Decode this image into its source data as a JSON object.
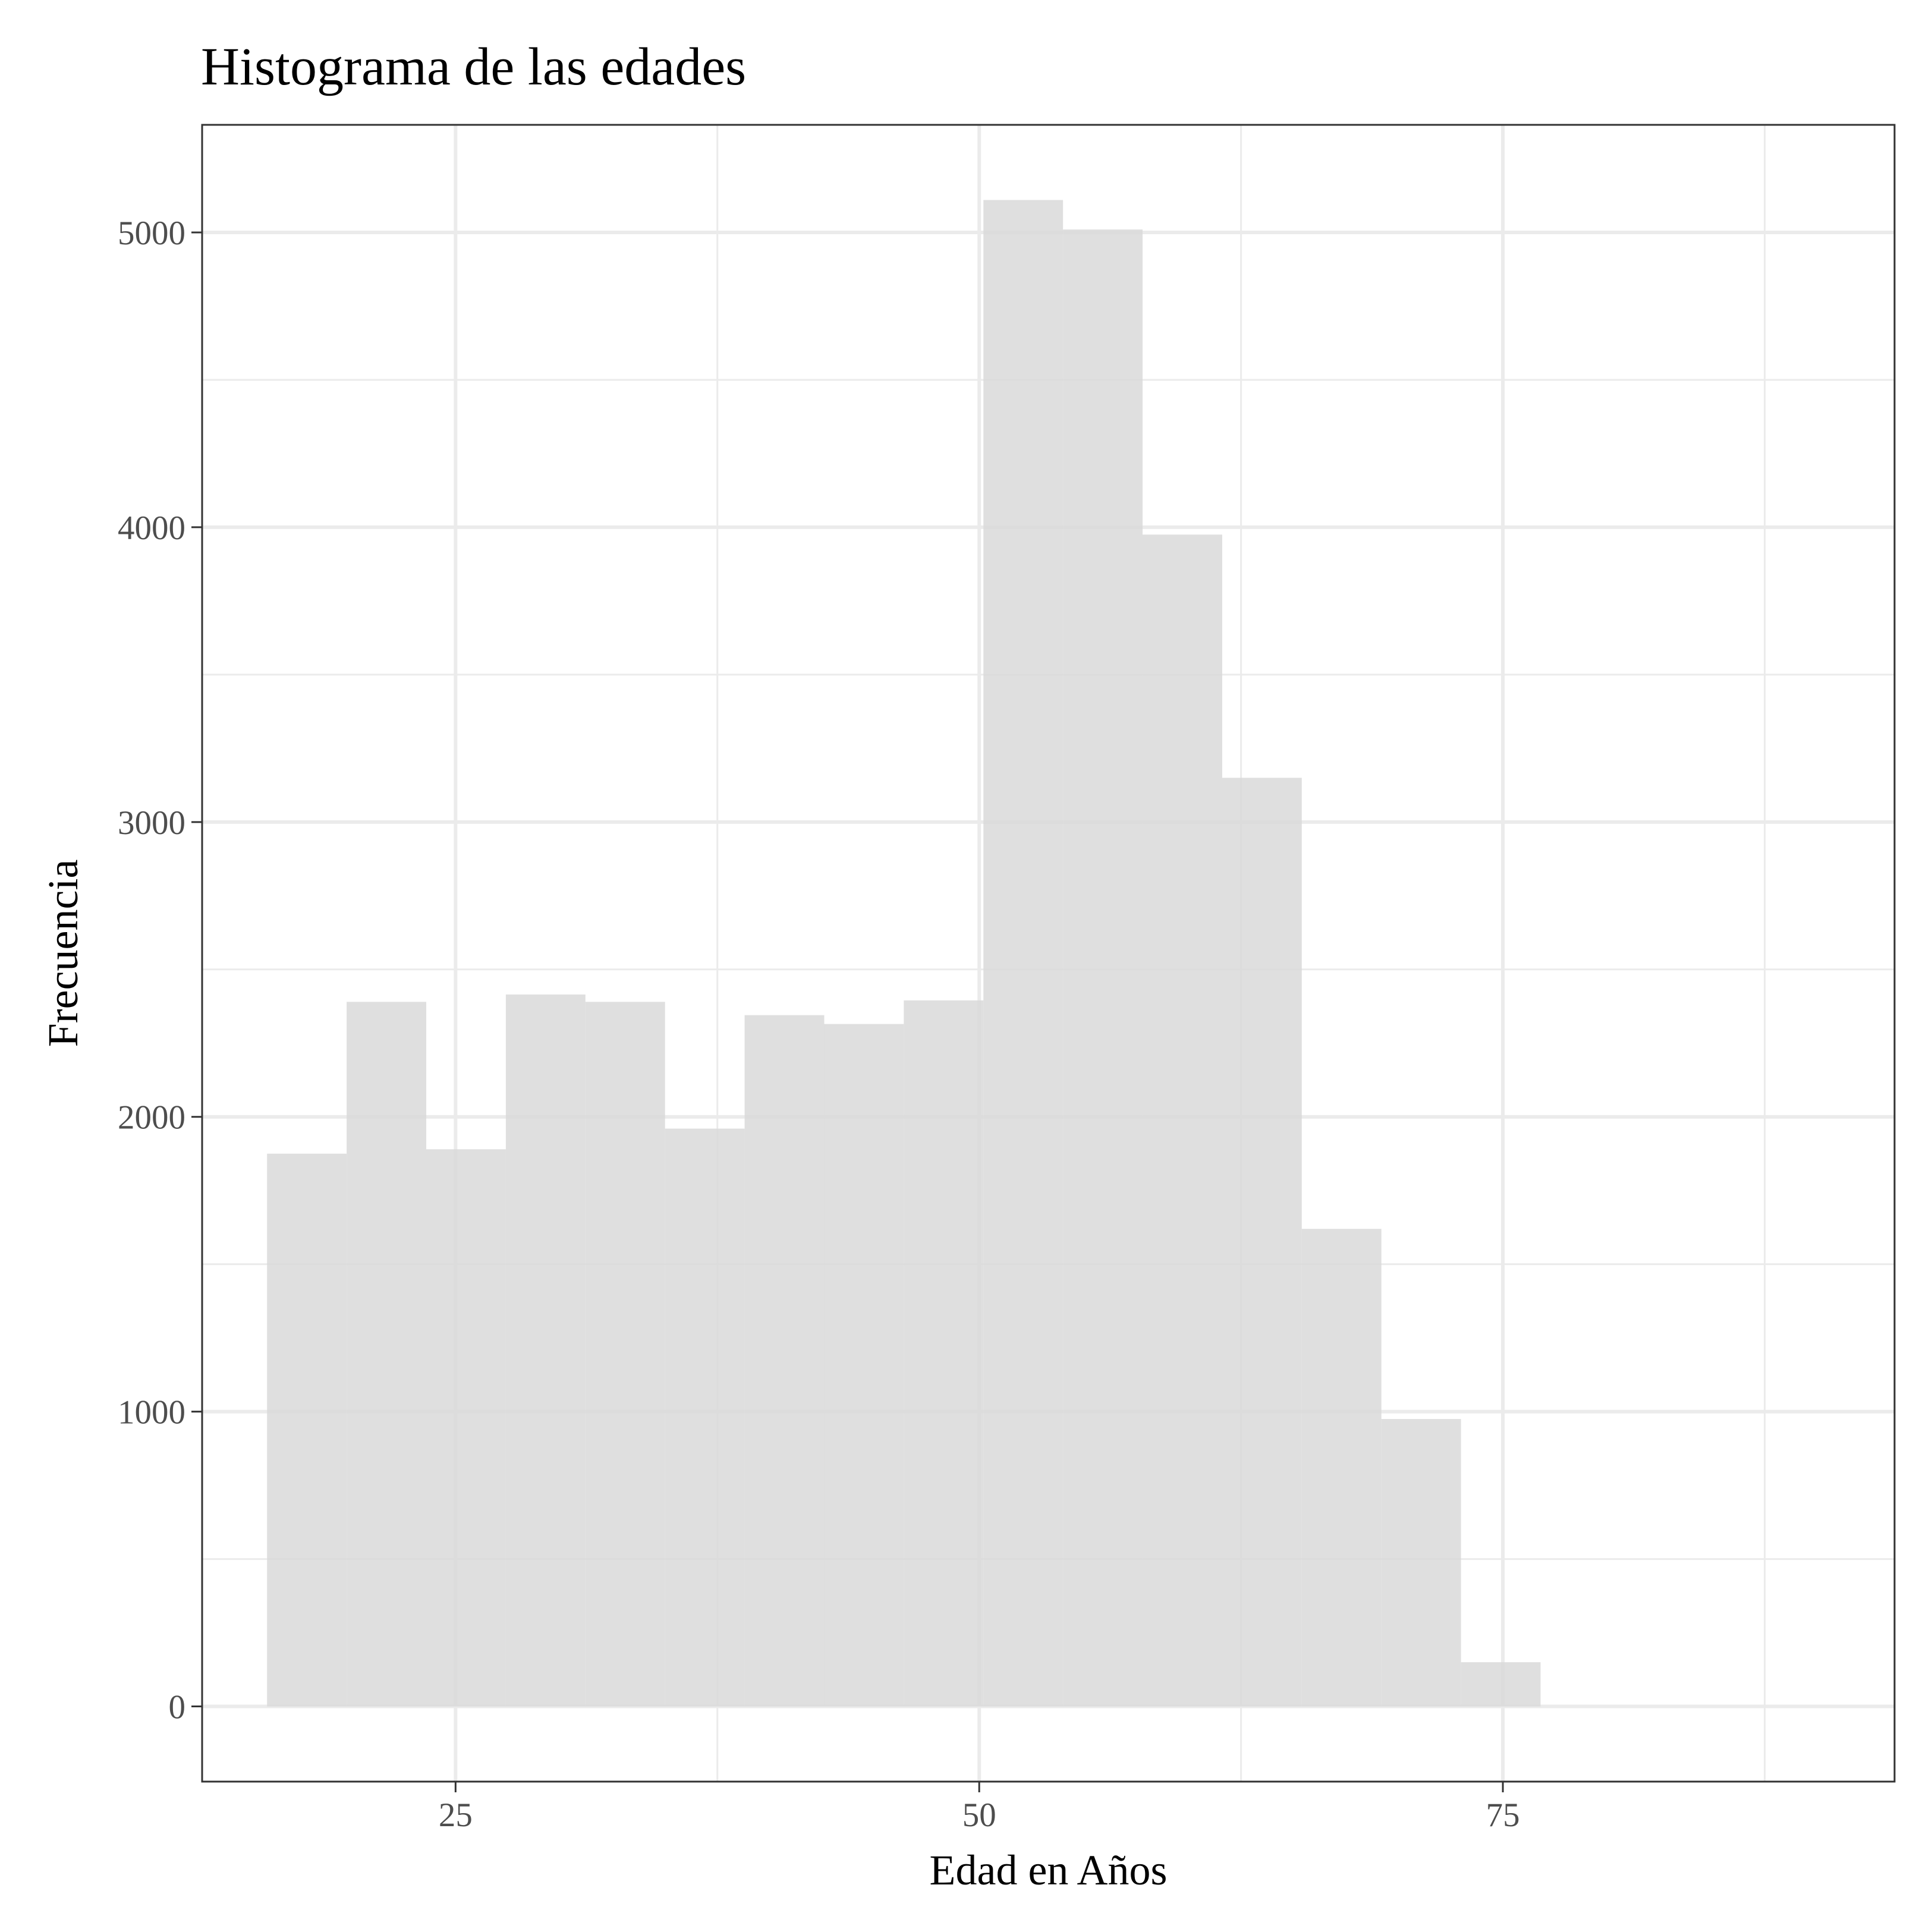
{
  "chart_data": {
    "type": "bar",
    "title": "Histograma de las edades",
    "xlabel": "Edad en Años",
    "ylabel": "Frecuencia",
    "bin_width": 3.8,
    "bins": [
      {
        "x0": 16.0,
        "x1": 19.8,
        "count": 1875
      },
      {
        "x0": 19.8,
        "x1": 23.6,
        "count": 2390
      },
      {
        "x0": 23.6,
        "x1": 27.4,
        "count": 1890
      },
      {
        "x0": 27.4,
        "x1": 31.2,
        "count": 2415
      },
      {
        "x0": 31.2,
        "x1": 35.0,
        "count": 2390
      },
      {
        "x0": 35.0,
        "x1": 38.8,
        "count": 1960
      },
      {
        "x0": 38.8,
        "x1": 42.6,
        "count": 2345
      },
      {
        "x0": 42.6,
        "x1": 46.4,
        "count": 2315
      },
      {
        "x0": 46.4,
        "x1": 50.2,
        "count": 2395
      },
      {
        "x0": 50.2,
        "x1": 54.0,
        "count": 5110
      },
      {
        "x0": 54.0,
        "x1": 57.8,
        "count": 5010
      },
      {
        "x0": 57.8,
        "x1": 61.6,
        "count": 3975
      },
      {
        "x0": 61.6,
        "x1": 65.4,
        "count": 3150
      },
      {
        "x0": 65.4,
        "x1": 69.2,
        "count": 1620
      },
      {
        "x0": 69.2,
        "x1": 73.0,
        "count": 975
      },
      {
        "x0": 73.0,
        "x1": 76.8,
        "count": 150
      }
    ],
    "xlim": [
      12.9,
      93.7
    ],
    "ylim": [
      -255,
      5365
    ],
    "x_ticks": [
      25,
      50,
      75
    ],
    "x_tick_labels": [
      "25",
      "50",
      "75"
    ],
    "x_minor_ticks": [
      37.5,
      62.5,
      87.5
    ],
    "y_ticks": [
      0,
      1000,
      2000,
      3000,
      4000,
      5000
    ],
    "y_tick_labels": [
      "0",
      "1000",
      "2000",
      "3000",
      "4000",
      "5000"
    ],
    "y_minor_ticks": [
      500,
      1500,
      2500,
      3500,
      4500
    ],
    "grid": true,
    "legend": "none",
    "bar_color": "#d9d9d9"
  }
}
